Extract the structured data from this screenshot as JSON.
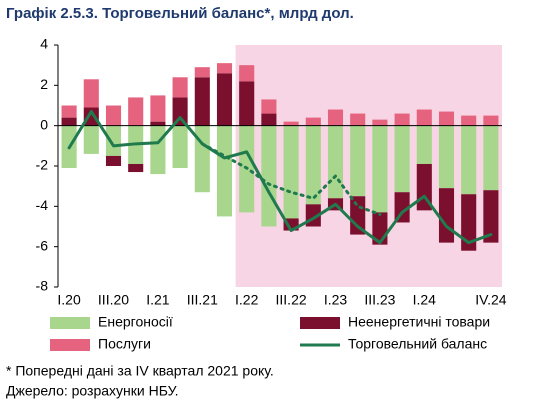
{
  "chart_data": {
    "type": "bar",
    "title": "Графік 2.5.3. Торговельний баланс*, млрд дол.",
    "categories": [
      "I.20",
      null,
      "III.20",
      null,
      "I.21",
      null,
      "III.21",
      null,
      "I.22",
      null,
      "III.22",
      null,
      "I.23",
      null,
      "III.23",
      null,
      "I.24",
      null,
      null,
      "IV.24"
    ],
    "series": [
      {
        "name": "Енергоносії",
        "type": "bar",
        "color": "#a8d68c",
        "values": [
          -2.1,
          -1.4,
          -1.5,
          -1.9,
          -2.4,
          -2.1,
          -3.3,
          -4.5,
          -4.3,
          -5.0,
          -4.6,
          -3.9,
          -3.6,
          -3.5,
          -4.3,
          -3.3,
          -1.9,
          -3.1,
          -3.4,
          -3.2
        ]
      },
      {
        "name": "Неенергетичні товари",
        "type": "bar",
        "color": "#7a0f2e",
        "values": [
          0.4,
          0.9,
          -0.5,
          -0.4,
          0.2,
          1.4,
          2.4,
          2.6,
          2.2,
          0.6,
          -0.6,
          -1.1,
          -0.6,
          -1.9,
          -1.6,
          -1.5,
          -2.3,
          -2.7,
          -2.8,
          -2.6
        ]
      },
      {
        "name": "Послуги",
        "type": "bar",
        "color": "#e5637f",
        "values": [
          0.6,
          1.4,
          1.0,
          1.4,
          1.3,
          1.0,
          0.5,
          0.5,
          0.8,
          0.7,
          0.2,
          0.4,
          0.8,
          0.6,
          0.3,
          0.6,
          0.8,
          0.7,
          0.5,
          0.5
        ]
      },
      {
        "name": "Торговельний баланс",
        "type": "line",
        "color": "#1f7a4d",
        "values": [
          -1.1,
          0.7,
          -1.0,
          -0.9,
          -0.85,
          0.4,
          -0.9,
          -1.6,
          -1.3,
          -3.3,
          -5.2,
          -4.6,
          -3.9,
          -5.0,
          -5.8,
          -4.3,
          -3.5,
          -5.0,
          -5.8,
          -5.4
        ]
      },
      {
        "type": "line",
        "dash": true,
        "color": "#1f7a4d",
        "values": [
          null,
          null,
          null,
          null,
          null,
          null,
          -0.9,
          -1.5,
          -2.1,
          -2.9,
          -3.3,
          -3.6,
          -2.5,
          -4.0,
          -4.4,
          null,
          null,
          null,
          null,
          null
        ]
      }
    ],
    "ylim": [
      -8,
      4
    ],
    "yticks": [
      -8,
      -6,
      -4,
      -2,
      0,
      2,
      4
    ],
    "highlight_start_index": 8,
    "highlight_color": "#f8d5e4",
    "footnotes": [
      "* Попередні дані за IV квартал 2021 року.",
      "Джерело: розрахунки НБУ."
    ]
  }
}
